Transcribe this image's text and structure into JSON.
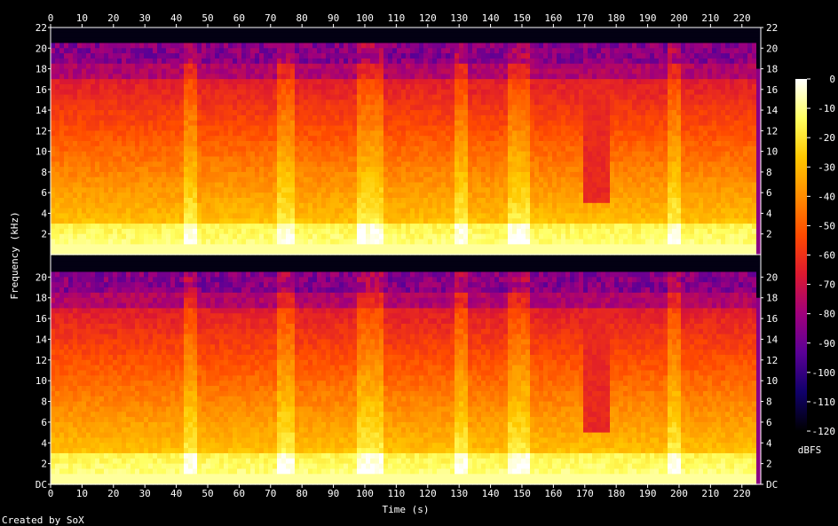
{
  "chart_data": {
    "type": "heatmap",
    "title": "",
    "xlabel": "Time (s)",
    "ylabel": "Frequency (kHz)",
    "colorbar_label": "dBFS",
    "footer": "Created by SoX",
    "x_ticks": [
      "0",
      "10",
      "20",
      "30",
      "40",
      "50",
      "60",
      "70",
      "80",
      "90",
      "100",
      "110",
      "120",
      "130",
      "140",
      "150",
      "160",
      "170",
      "180",
      "190",
      "200",
      "210",
      "220"
    ],
    "xlim": [
      0,
      226
    ],
    "y_ticks_top": [
      "22",
      "20",
      "18",
      "16",
      "14",
      "12",
      "10",
      "8",
      "6",
      "4",
      "2"
    ],
    "y_ticks_bottom": [
      "DC",
      "2",
      "4",
      "6",
      "8",
      "10",
      "12",
      "14",
      "16",
      "18",
      "20",
      "22"
    ],
    "ylim": [
      0,
      22
    ],
    "colorbar_ticks": [
      "0",
      "-10",
      "-20",
      "-30",
      "-40",
      "-50",
      "-60",
      "-70",
      "-80",
      "-90",
      "-100",
      "-110",
      "-120"
    ],
    "colorbar_range": [
      -120,
      0
    ],
    "channels": 2,
    "colors": {
      "background": "#000000",
      "frame": "#ffffff",
      "palette": [
        "#000000",
        "#10006a",
        "#5a0096",
        "#a0007c",
        "#dc1830",
        "#ff4a00",
        "#ff8c00",
        "#ffc800",
        "#ffff60",
        "#ffffff"
      ]
    }
  }
}
